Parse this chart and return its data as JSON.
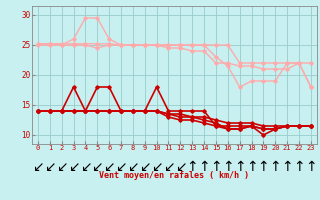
{
  "xlabel": "Vent moyen/en rafales ( km/h )",
  "background_color": "#c8f0f0",
  "grid_color": "#99cccc",
  "xlim": [
    -0.5,
    23.5
  ],
  "ylim": [
    8.5,
    31.5
  ],
  "yticks": [
    10,
    15,
    20,
    25,
    30
  ],
  "xticks": [
    0,
    1,
    2,
    3,
    4,
    5,
    6,
    7,
    8,
    9,
    10,
    11,
    12,
    13,
    14,
    15,
    16,
    17,
    18,
    19,
    20,
    21,
    22,
    23
  ],
  "series": [
    {
      "y": [
        25.2,
        25.2,
        25.2,
        25.2,
        25.2,
        25.2,
        25.2,
        25.0,
        25.0,
        25.0,
        25.0,
        25.0,
        25.0,
        25.0,
        25.0,
        23.0,
        21.5,
        18.0,
        19.0,
        19.0,
        19.0,
        22.0,
        22.0,
        18.0
      ],
      "color": "#ffaaaa",
      "lw": 1.0,
      "marker": "D",
      "markersize": 1.8
    },
    {
      "y": [
        25.0,
        25.0,
        25.0,
        26.0,
        29.5,
        29.5,
        26.0,
        25.0,
        25.0,
        25.0,
        25.0,
        25.0,
        25.0,
        25.0,
        25.0,
        25.0,
        25.0,
        22.0,
        22.0,
        22.0,
        22.0,
        22.0,
        22.0,
        22.0
      ],
      "color": "#ffaaaa",
      "lw": 1.0,
      "marker": "D",
      "markersize": 1.8
    },
    {
      "y": [
        25.2,
        25.2,
        25.0,
        25.0,
        25.0,
        24.5,
        25.0,
        25.0,
        25.0,
        25.0,
        25.0,
        24.5,
        24.5,
        24.0,
        24.0,
        22.0,
        22.0,
        21.5,
        21.5,
        21.0,
        21.0,
        21.0,
        22.0,
        18.0
      ],
      "color": "#ffaaaa",
      "lw": 1.0,
      "marker": "D",
      "markersize": 1.8
    },
    {
      "y": [
        14.0,
        14.0,
        14.0,
        18.0,
        14.0,
        18.0,
        18.0,
        14.0,
        14.0,
        14.0,
        18.0,
        14.0,
        14.0,
        14.0,
        14.0,
        11.5,
        11.5,
        11.5,
        11.5,
        10.0,
        11.0,
        11.5,
        11.5,
        11.5
      ],
      "color": "#cc0000",
      "lw": 1.2,
      "marker": "D",
      "markersize": 1.8
    },
    {
      "y": [
        14.0,
        14.0,
        14.0,
        14.0,
        14.0,
        14.0,
        14.0,
        14.0,
        14.0,
        14.0,
        14.0,
        13.5,
        13.5,
        13.0,
        13.0,
        12.5,
        12.0,
        12.0,
        12.0,
        11.5,
        11.5,
        11.5,
        11.5,
        11.5
      ],
      "color": "#cc0000",
      "lw": 1.2,
      "marker": "D",
      "markersize": 1.8
    },
    {
      "y": [
        14.0,
        14.0,
        14.0,
        14.0,
        14.0,
        14.0,
        14.0,
        14.0,
        14.0,
        14.0,
        14.0,
        13.5,
        13.0,
        13.0,
        12.5,
        12.0,
        11.0,
        11.0,
        11.5,
        11.0,
        11.0,
        11.5,
        11.5,
        11.5
      ],
      "color": "#cc0000",
      "lw": 1.2,
      "marker": "D",
      "markersize": 1.8
    },
    {
      "y": [
        14.0,
        14.0,
        14.0,
        14.0,
        14.0,
        14.0,
        14.0,
        14.0,
        14.0,
        14.0,
        14.0,
        13.0,
        12.5,
        12.5,
        12.0,
        11.5,
        11.0,
        11.0,
        11.5,
        11.0,
        11.0,
        11.5,
        11.5,
        11.5
      ],
      "color": "#cc0000",
      "lw": 1.2,
      "marker": "D",
      "markersize": 1.8
    }
  ],
  "wind_arrows": [
    "↙",
    "↙",
    "↙",
    "↙",
    "↙",
    "↙",
    "↙",
    "↙",
    "↙",
    "↙",
    "↙",
    "↙",
    "↙",
    "↑",
    "↑",
    "↑",
    "↑",
    "↑",
    "↑",
    "↑",
    "↑",
    "↑",
    "↑",
    "↑"
  ],
  "arrow_color": "#cc0000",
  "tick_color": "#cc0000",
  "xlabel_fontsize": 6.0,
  "tick_fontsize": 5.0,
  "ytick_fontsize": 5.5
}
